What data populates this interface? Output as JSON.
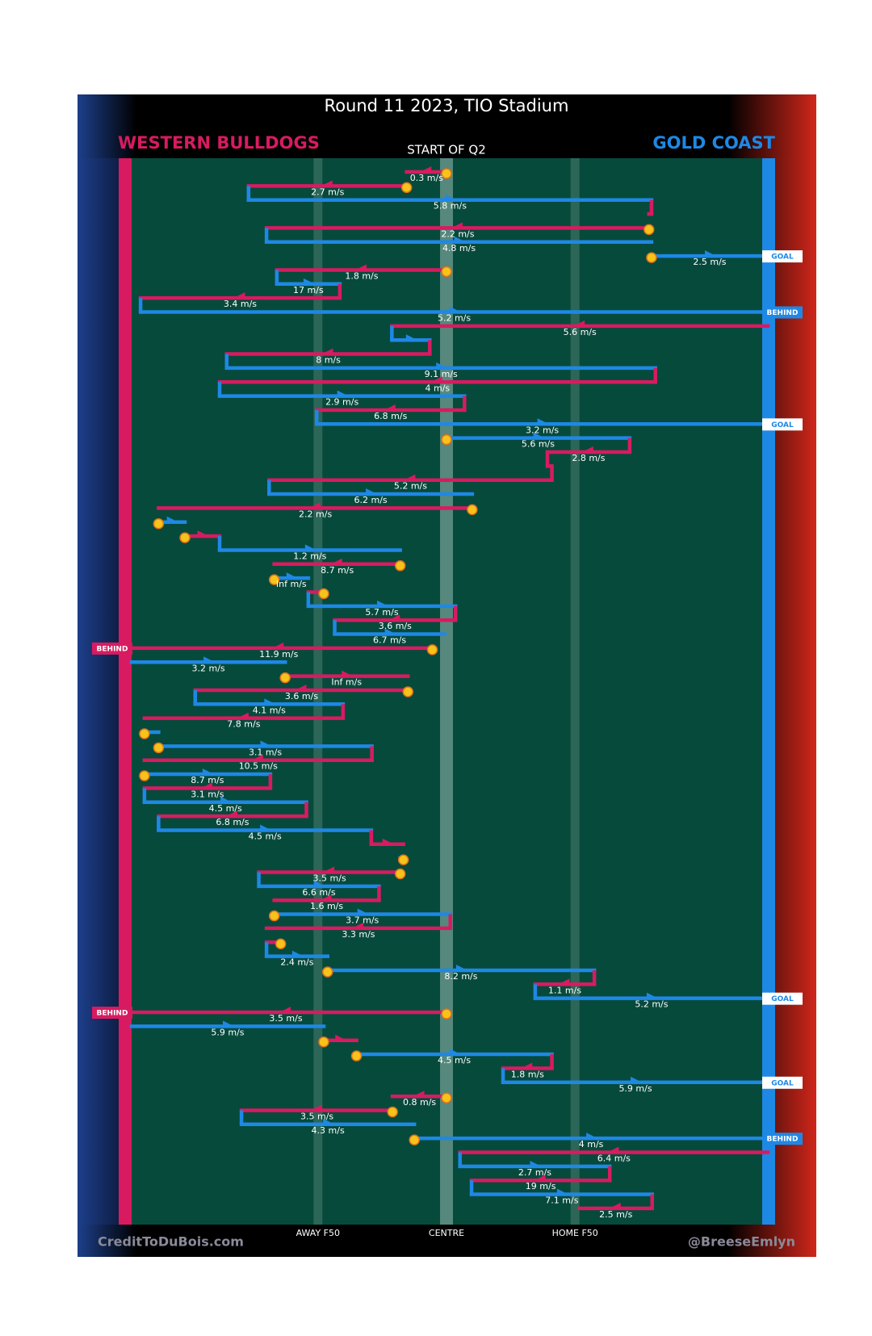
{
  "title": "Round 11 2023, TIO Stadium",
  "period": "START OF Q2",
  "teams": [
    {
      "name": "WESTERN BULLDOGS",
      "color": "#d81b60"
    },
    {
      "name": "GOLD COAST",
      "color": "#1e88e5"
    }
  ],
  "field_marks": [
    {
      "value": 30,
      "label": "AWAY F50"
    },
    {
      "value": 50,
      "label": "CENTRE"
    },
    {
      "value": 70,
      "label": "HOME F50"
    }
  ],
  "credits": [
    "CreditToDuBois.com",
    "@BreeseEmlyn"
  ],
  "moves": [
    {
      "team": 0,
      "x": [
        50,
        43.8
      ],
      "speed": "0.3 m/s",
      "stoppage": true
    },
    {
      "team": 0,
      "x": [
        43.8,
        19.2
      ],
      "speed": "2.7 m/s",
      "stoppage": true
    },
    {
      "team": 1,
      "x": [
        19.2,
        81.9
      ],
      "speed": "5.8 m/s"
    },
    {
      "team": 0,
      "x": [
        81.9,
        81.5
      ]
    },
    {
      "team": 0,
      "x": [
        81.5,
        22.0
      ],
      "speed": "2.2 m/s",
      "stoppage": true
    },
    {
      "team": 1,
      "x": [
        22.0,
        81.9
      ],
      "speed": "4.8 m/s"
    },
    {
      "team": 1,
      "x": [
        81.9,
        100
      ],
      "speed": "2.5 m/s",
      "stoppage": true,
      "result": "GOAL"
    },
    {
      "team": 0,
      "x": [
        50,
        23.6
      ],
      "speed": "1.8 m/s",
      "stoppage": true
    },
    {
      "team": 1,
      "x": [
        23.6,
        33.4
      ],
      "speed": "17 m/s"
    },
    {
      "team": 0,
      "x": [
        33.4,
        2.4
      ],
      "speed": "3.4 m/s"
    },
    {
      "team": 1,
      "x": [
        2.4,
        100
      ],
      "speed": "5.2 m/s",
      "result": "BEHIND"
    },
    {
      "team": 0,
      "x": [
        100,
        41.5
      ],
      "speed": "5.6 m/s"
    },
    {
      "team": 1,
      "x": [
        41.5,
        47.4
      ]
    },
    {
      "team": 0,
      "x": [
        47.4,
        15.8
      ],
      "speed": "8 m/s"
    },
    {
      "team": 1,
      "x": [
        15.8,
        82.5
      ],
      "speed": "9.1 m/s"
    },
    {
      "team": 0,
      "x": [
        82.5,
        14.7
      ],
      "speed": "4 m/s"
    },
    {
      "team": 1,
      "x": [
        14.7,
        52.8
      ],
      "speed": "2.9 m/s"
    },
    {
      "team": 0,
      "x": [
        52.8,
        29.8
      ],
      "speed": "6.8 m/s"
    },
    {
      "team": 1,
      "x": [
        29.8,
        100
      ],
      "speed": "3.2 m/s",
      "result": "GOAL"
    },
    {
      "team": 1,
      "x": [
        50,
        78.5
      ],
      "speed": "5.6 m/s",
      "stoppage": true
    },
    {
      "team": 0,
      "x": [
        78.5,
        65.7
      ],
      "speed": "2.8 m/s"
    },
    {
      "team": 0,
      "x": [
        65.7,
        66.4
      ]
    },
    {
      "team": 0,
      "x": [
        66.4,
        22.4
      ],
      "speed": "5.2 m/s"
    },
    {
      "team": 1,
      "x": [
        22.4,
        54.0
      ],
      "speed": "6.2 m/s"
    },
    {
      "team": 0,
      "x": [
        54.0,
        5.2
      ],
      "speed": "2.2 m/s",
      "stoppage": true
    },
    {
      "team": 1,
      "x": [
        5.2,
        9.3
      ],
      "stoppage": true
    },
    {
      "team": 0,
      "x": [
        9.3,
        14.7
      ],
      "stoppage": true
    },
    {
      "team": 1,
      "x": [
        14.7,
        42.8
      ],
      "speed": "1.2 m/s"
    },
    {
      "team": 0,
      "x": [
        42.8,
        23.2
      ],
      "speed": "8.7 m/s",
      "stoppage": true
    },
    {
      "team": 1,
      "x": [
        23.2,
        28.5
      ],
      "speed": "Inf m/s",
      "stoppage": true
    },
    {
      "team": 0,
      "x": [
        30.9,
        28.5
      ],
      "stoppage": true
    },
    {
      "team": 1,
      "x": [
        28.5,
        51.4
      ],
      "speed": "5.7 m/s"
    },
    {
      "team": 0,
      "x": [
        51.4,
        32.6
      ],
      "speed": "3.6 m/s"
    },
    {
      "team": 1,
      "x": [
        32.6,
        49.7
      ],
      "speed": "6.7 m/s"
    },
    {
      "team": 0,
      "x": [
        47.8,
        0
      ],
      "speed": "11.9 m/s",
      "stoppage": true,
      "result": "BEHIND"
    },
    {
      "team": 1,
      "x": [
        1,
        24.9
      ],
      "speed": "3.2 m/s"
    },
    {
      "team": 0,
      "x": [
        24.9,
        44.0
      ],
      "speed": "Inf m/s",
      "stoppage": true
    },
    {
      "team": 0,
      "x": [
        44.0,
        10.9
      ],
      "speed": "3.6 m/s",
      "stoppage": true
    },
    {
      "team": 1,
      "x": [
        10.9,
        33.9
      ],
      "speed": "4.1 m/s"
    },
    {
      "team": 0,
      "x": [
        33.9,
        3.0
      ],
      "speed": "7.8 m/s"
    },
    {
      "team": 1,
      "x": [
        3.0,
        5.2
      ],
      "stoppage": true
    },
    {
      "team": 1,
      "x": [
        5.2,
        38.4
      ],
      "speed": "3.1 m/s",
      "stoppage": true
    },
    {
      "team": 0,
      "x": [
        38.4,
        3.0
      ],
      "speed": "10.5 m/s"
    },
    {
      "team": 1,
      "x": [
        3.0,
        22.6
      ],
      "speed": "8.7 m/s",
      "stoppage": true
    },
    {
      "team": 0,
      "x": [
        22.6,
        3.0
      ],
      "speed": "3.1 m/s"
    },
    {
      "team": 1,
      "x": [
        3.0,
        28.2
      ],
      "speed": "4.5 m/s"
    },
    {
      "team": 0,
      "x": [
        28.2,
        5.2
      ],
      "speed": "6.8 m/s"
    },
    {
      "team": 1,
      "x": [
        5.2,
        38.3
      ],
      "speed": "4.5 m/s"
    },
    {
      "team": 0,
      "x": [
        38.3,
        43.3
      ]
    },
    {
      "team": 1,
      "x": [
        43.3,
        42.8
      ],
      "stoppage": true
    },
    {
      "team": 0,
      "x": [
        42.8,
        20.8
      ],
      "speed": "3.5 m/s",
      "stoppage": true
    },
    {
      "team": 1,
      "x": [
        20.8,
        39.5
      ],
      "speed": "6.6 m/s"
    },
    {
      "team": 0,
      "x": [
        39.5,
        23.2
      ],
      "speed": "1.6 m/s"
    },
    {
      "team": 1,
      "x": [
        23.2,
        50.6
      ],
      "speed": "3.7 m/s",
      "stoppage": true
    },
    {
      "team": 0,
      "x": [
        50.6,
        22.0
      ],
      "speed": "3.3 m/s"
    },
    {
      "team": 0,
      "x": [
        24.2,
        22.0
      ],
      "stoppage": true
    },
    {
      "team": 1,
      "x": [
        22.0,
        31.5
      ],
      "speed": "2.4 m/s"
    },
    {
      "team": 1,
      "x": [
        31.5,
        73.0
      ],
      "speed": "8.2 m/s",
      "stoppage": true
    },
    {
      "team": 0,
      "x": [
        73.0,
        63.8
      ],
      "speed": "1.1 m/s"
    },
    {
      "team": 1,
      "x": [
        63.8,
        100
      ],
      "speed": "5.2 m/s",
      "result": "GOAL"
    },
    {
      "team": 0,
      "x": [
        50,
        0
      ],
      "speed": "3.5 m/s",
      "stoppage": true,
      "result": "BEHIND"
    },
    {
      "team": 1,
      "x": [
        1,
        30.9
      ],
      "speed": "5.9 m/s"
    },
    {
      "team": 0,
      "x": [
        30.9,
        36.0
      ],
      "stoppage": true
    },
    {
      "team": 1,
      "x": [
        36.0,
        66.4
      ],
      "speed": "4.5 m/s",
      "stoppage": true
    },
    {
      "team": 0,
      "x": [
        66.4,
        58.8
      ],
      "speed": "1.8 m/s"
    },
    {
      "team": 1,
      "x": [
        58.8,
        100
      ],
      "speed": "5.9 m/s",
      "result": "GOAL"
    },
    {
      "team": 0,
      "x": [
        50,
        41.6
      ],
      "speed": "0.8 m/s",
      "stoppage": true
    },
    {
      "team": 0,
      "x": [
        41.6,
        18.1
      ],
      "speed": "3.5 m/s",
      "stoppage": true
    },
    {
      "team": 1,
      "x": [
        18.1,
        45.0
      ],
      "speed": "4.3 m/s"
    },
    {
      "team": 1,
      "x": [
        45.0,
        100
      ],
      "speed": "4 m/s",
      "stoppage": true,
      "result": "BEHIND"
    },
    {
      "team": 0,
      "x": [
        100,
        52.1
      ],
      "speed": "6.4 m/s"
    },
    {
      "team": 1,
      "x": [
        52.1,
        75.4
      ],
      "speed": "2.7 m/s"
    },
    {
      "team": 0,
      "x": [
        75.4,
        53.9
      ],
      "speed": "19 m/s"
    },
    {
      "team": 1,
      "x": [
        53.9,
        82.0
      ],
      "speed": "7.1 m/s"
    },
    {
      "team": 0,
      "x": [
        82.0,
        70.7
      ],
      "speed": "2.5 m/s"
    }
  ]
}
